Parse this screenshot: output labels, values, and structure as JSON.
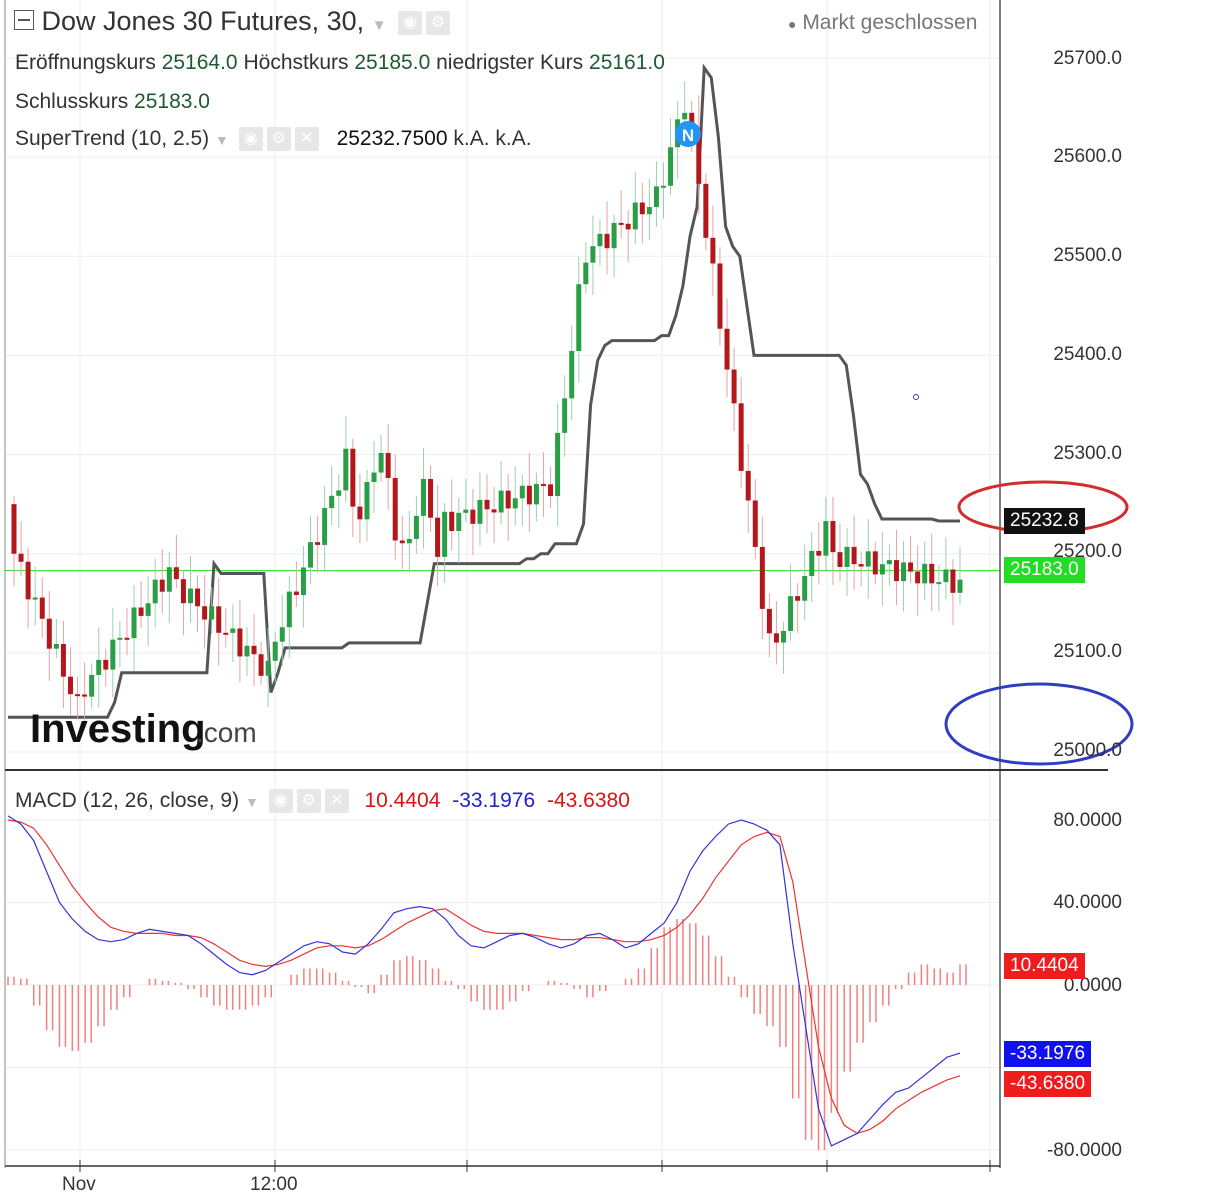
{
  "header": {
    "collapse_icon": "square-minus-icon",
    "title": "Dow Jones 30 Futures, 30,",
    "market_status": "Markt geschlossen",
    "ohlc": {
      "open_label": "Eröffnungskurs",
      "open_value": "25164.0",
      "high_label": "Höchstkurs",
      "high_value": "25185.0",
      "low_label": "niedrigster Kurs",
      "low_value": "25161.0",
      "close_label": "Schlusskurs",
      "close_value": "25183.0"
    },
    "supertrend": {
      "label": "SuperTrend (10, 2.5)",
      "value": "25232.7500",
      "v2": "k.A.",
      "v3": "k.A."
    },
    "macd": {
      "label": "MACD (12, 26, close, 9)",
      "hist": "10.4404",
      "macd": "-33.1976",
      "signal": "-43.6380"
    },
    "watermark": "Investing",
    "watermark_suffix": ".com",
    "marker_letter": "N"
  },
  "price_axis": {
    "ticks": [
      "25700.0",
      "25600.0",
      "25500.0",
      "25400.0",
      "25300.0",
      "25200.0",
      "25100.0",
      "25000.0"
    ]
  },
  "macd_axis": {
    "ticks": [
      "80.0000",
      "40.0000",
      "0.0000",
      "-80.0000"
    ]
  },
  "tags": {
    "supertrend": "25232.8",
    "last": "25183.0",
    "hist": "10.4404",
    "macd": "-33.1976",
    "signal": "-43.6380"
  },
  "time_axis": {
    "labels": [
      "Nov",
      "12:00"
    ]
  },
  "colors": {
    "up": "#2a9d47",
    "down": "#b3161b",
    "supertrend": "#555555",
    "macd": "#3333dd",
    "signal": "#ee3333",
    "hist": "#f28080",
    "last": "#22dd22"
  },
  "chart_data": [
    {
      "type": "candlestick",
      "title": "Dow Jones 30 Futures, 30,",
      "ylim": [
        24980,
        25720
      ],
      "series": [
        {
          "name": "SuperTrend (10, 2.5)",
          "values": [
            25035,
            25035,
            25035,
            25035,
            25035,
            25035,
            25035,
            25035,
            25035,
            25035,
            25035,
            25035,
            25035,
            25035,
            25035,
            25050,
            25080,
            25080,
            25080,
            25080,
            25080,
            25080,
            25080,
            25080,
            25080,
            25080,
            25080,
            25080,
            25080,
            25190,
            25180,
            25180,
            25180,
            25180,
            25180,
            25180,
            25180,
            25060,
            25080,
            25105,
            25105,
            25105,
            25105,
            25105,
            25105,
            25105,
            25105,
            25105,
            25110,
            25110,
            25110,
            25110,
            25110,
            25110,
            25110,
            25110,
            25110,
            25110,
            25110,
            25150,
            25190,
            25190,
            25190,
            25190,
            25190,
            25190,
            25190,
            25190,
            25190,
            25190,
            25190,
            25190,
            25190,
            25195,
            25195,
            25200,
            25200,
            25210,
            25210,
            25210,
            25210,
            25230,
            25350,
            25395,
            25410,
            25415,
            25415,
            25415,
            25415,
            25415,
            25415,
            25415,
            25420,
            25420,
            25440,
            25470,
            25520,
            25550,
            25690,
            25680,
            25620,
            25530,
            25510,
            25500,
            25450,
            25400,
            25400,
            25400,
            25400,
            25400,
            25400,
            25400,
            25400,
            25400,
            25400,
            25400,
            25400,
            25400,
            25390,
            25340,
            25280,
            25270,
            25250,
            25235,
            25235,
            25235,
            25235,
            25235,
            25235,
            25235,
            25235,
            25233,
            25233,
            25233,
            25233
          ]
        }
      ]
    },
    {
      "type": "line",
      "title": "MACD (12, 26, close, 9)",
      "ylim": [
        -85,
        88
      ],
      "series": [
        {
          "name": "MACD",
          "values": [
            82,
            78,
            70,
            55,
            40,
            32,
            26,
            22,
            21,
            22,
            25,
            27,
            26,
            25,
            24,
            20,
            15,
            10,
            6,
            5,
            7,
            11,
            15,
            19,
            21,
            20,
            16,
            15,
            20,
            27,
            35,
            37,
            38,
            37,
            32,
            24,
            19,
            18,
            21,
            24,
            25,
            23,
            20,
            18,
            20,
            24,
            25,
            22,
            18,
            20,
            25,
            30,
            40,
            55,
            65,
            72,
            78,
            80,
            78,
            75,
            68,
            20,
            -20,
            -60,
            -78,
            -75,
            -72,
            -65,
            -58,
            -52,
            -50,
            -45,
            -40,
            -35,
            -33
          ]
        },
        {
          "name": "Signal",
          "values": [
            80,
            79,
            76,
            68,
            58,
            48,
            40,
            33,
            28,
            26,
            25,
            25,
            25,
            24,
            24,
            23,
            20,
            16,
            12,
            10,
            9,
            10,
            12,
            15,
            18,
            19,
            19,
            18,
            19,
            22,
            26,
            30,
            33,
            36,
            37,
            33,
            29,
            26,
            25,
            25,
            25,
            24,
            23,
            22,
            22,
            23,
            23,
            22,
            21,
            21,
            22,
            24,
            28,
            34,
            42,
            52,
            60,
            68,
            72,
            74,
            72,
            50,
            10,
            -30,
            -55,
            -68,
            -72,
            -70,
            -66,
            -60,
            -56,
            -52,
            -49,
            -46,
            -44
          ]
        },
        {
          "name": "Histogram",
          "values": [
            4,
            3,
            -10,
            -22,
            -30,
            -32,
            -28,
            -20,
            -12,
            -6,
            0,
            3,
            2,
            1,
            -2,
            -6,
            -10,
            -12,
            -12,
            -10,
            -6,
            0,
            5,
            8,
            8,
            6,
            2,
            -1,
            -4,
            5,
            12,
            14,
            12,
            8,
            2,
            -2,
            -8,
            -12,
            -12,
            -8,
            -3,
            0,
            2,
            1,
            -2,
            -6,
            -3,
            0,
            3,
            8,
            18,
            28,
            32,
            30,
            24,
            14,
            4,
            -6,
            -14,
            -20,
            -30,
            -55,
            -75,
            -80,
            -62,
            -42,
            -28,
            -18,
            -10,
            -2,
            6,
            10,
            8,
            6,
            10
          ]
        }
      ]
    }
  ]
}
